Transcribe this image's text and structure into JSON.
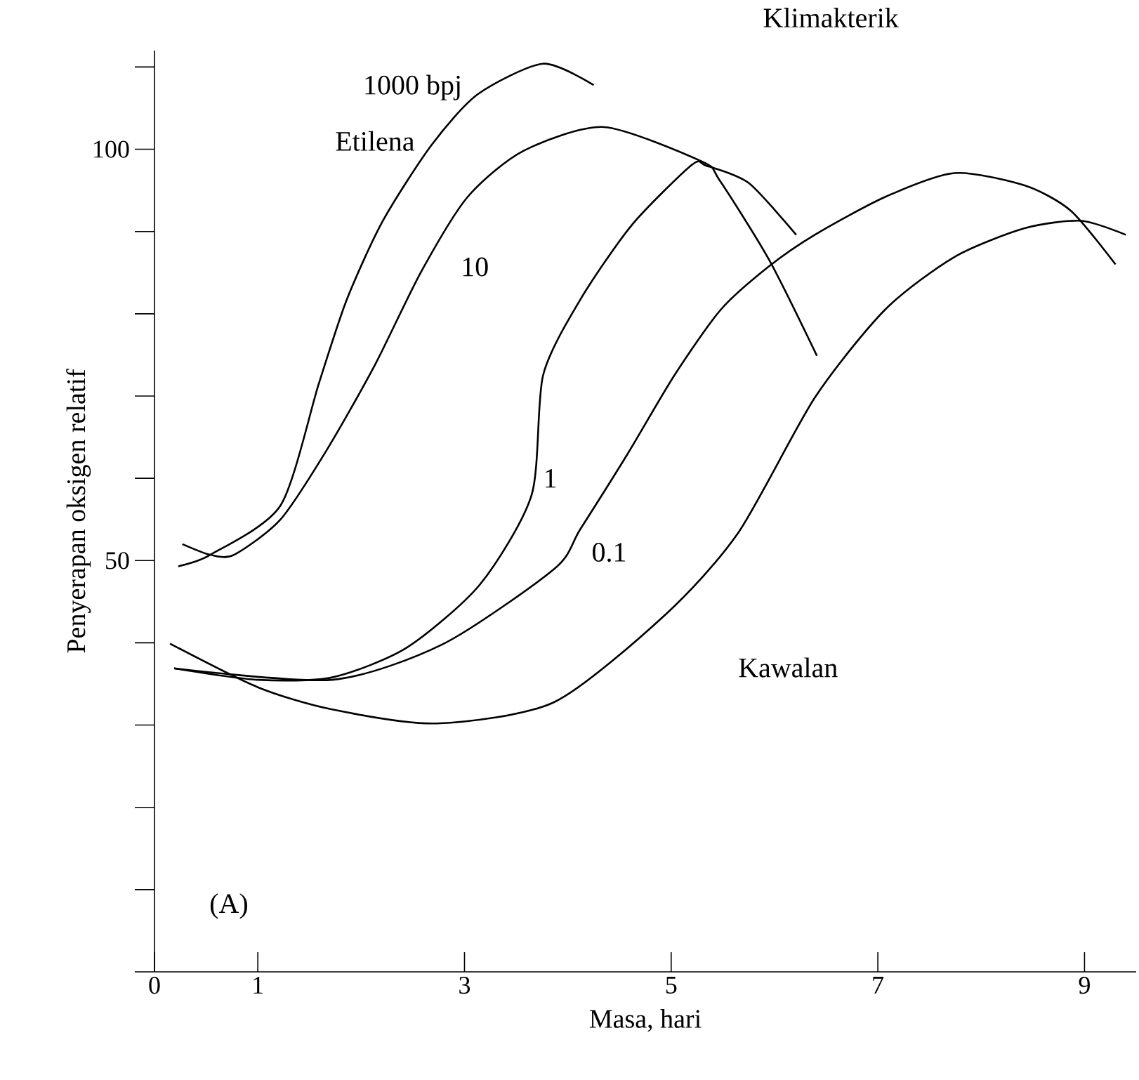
{
  "chart_data": {
    "type": "line",
    "xlabel": "Masa, hari",
    "ylabel": "Penyerapan oksigen relatif",
    "xlim": [
      0,
      9.5
    ],
    "ylim": [
      0,
      112
    ],
    "xticks": [
      0,
      1,
      3,
      5,
      7,
      9
    ],
    "yticks": [
      {
        "value": 0,
        "label": null
      },
      {
        "value": 10,
        "label": null
      },
      {
        "value": 20,
        "label": null
      },
      {
        "value": 30,
        "label": null
      },
      {
        "value": 40,
        "label": null
      },
      50,
      {
        "value": 60,
        "label": null
      },
      {
        "value": 70,
        "label": null
      },
      {
        "value": 80,
        "label": null
      },
      {
        "value": 90,
        "label": null
      },
      100,
      {
        "value": 110,
        "label": null
      }
    ],
    "grid": false,
    "legend": false,
    "line_style": "solid",
    "annotations": [
      "Klimakterik",
      "Etilena",
      "(A)"
    ],
    "series": [
      {
        "name": "1000 bpj",
        "color": "#000000",
        "x": [
          0.23,
          0.54,
          1.22,
          1.59,
          1.86,
          2.21,
          2.68,
          3.13,
          3.76,
          4.25
        ],
        "values": [
          49.3,
          50.7,
          56.7,
          71.5,
          81.7,
          91.3,
          100.5,
          106.7,
          110.4,
          107.8
        ]
      },
      {
        "name": "10",
        "color": "#000000",
        "x": [
          0.27,
          0.54,
          0.77,
          1.22,
          1.67,
          2.13,
          2.58,
          3.03,
          3.57,
          4.35,
          5.3,
          5.47,
          5.95,
          6.41
        ],
        "values": [
          52,
          50.7,
          50.7,
          55,
          63.5,
          73.7,
          85.1,
          94.2,
          99.8,
          102.7,
          98.5,
          96.2,
          86.5,
          74.9
        ]
      },
      {
        "name": "1",
        "color": "#000000",
        "x": [
          0.19,
          1.0,
          1.72,
          2.44,
          3.15,
          3.65,
          3.76,
          4.12,
          4.62,
          5.2,
          5.34,
          5.75,
          6.21
        ],
        "values": [
          36.9,
          35.5,
          35.8,
          39.4,
          47.1,
          58,
          72.5,
          81.7,
          90.8,
          98.1,
          98,
          95.9,
          89.6
        ]
      },
      {
        "name": "0.1",
        "color": "#000000",
        "x": [
          0.19,
          1.72,
          2.8,
          3.87,
          4.12,
          4.58,
          5.03,
          5.48,
          5.94,
          6.39,
          7.07,
          7.74,
          8.42,
          8.87,
          9.3
        ],
        "values": [
          36.9,
          35.5,
          39.9,
          49,
          53.8,
          63,
          72.5,
          80.5,
          85.7,
          89.6,
          94.2,
          97.1,
          95.6,
          92.5,
          86
        ]
      },
      {
        "name": "Kawalan",
        "color": "#000000",
        "x": [
          0.15,
          1.0,
          1.72,
          2.73,
          3.87,
          4.95,
          5.65,
          6.39,
          7.07,
          7.74,
          8.42,
          8.97,
          9.4
        ],
        "values": [
          39.9,
          34.6,
          31.9,
          30.2,
          32.8,
          43.5,
          53.4,
          69.8,
          80.5,
          86.9,
          90.4,
          91.3,
          89.6
        ]
      }
    ]
  }
}
